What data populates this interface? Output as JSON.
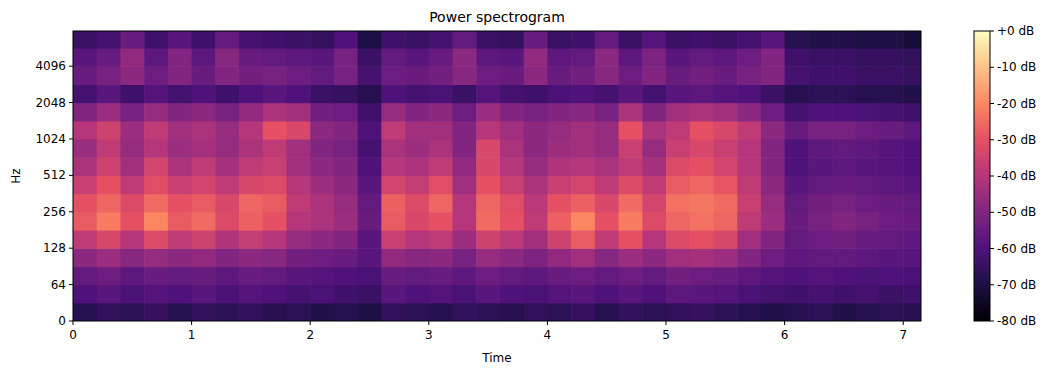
{
  "chart_data": {
    "type": "heatmap",
    "title": "Power spectrogram",
    "x_label": "Time",
    "y_label": "Hz",
    "xlim": [
      0,
      7.15
    ],
    "ylim": [
      0,
      8000
    ],
    "xticks": [
      0,
      1,
      2,
      3,
      4,
      5,
      6,
      7
    ],
    "yticks": [
      0,
      64,
      128,
      256,
      512,
      1024,
      2048,
      4096
    ],
    "log": "y",
    "x_edges": [
      0,
      0.2,
      0.4,
      0.6,
      0.8,
      1.0,
      1.2,
      1.4,
      1.6,
      1.8,
      2.0,
      2.2,
      2.4,
      2.6,
      2.8,
      3.0,
      3.2,
      3.4,
      3.6,
      3.8,
      4.0,
      4.2,
      4.4,
      4.6,
      4.8,
      5.0,
      5.2,
      5.4,
      5.6,
      5.8,
      6.0,
      6.2,
      6.4,
      6.6,
      6.8,
      7.0,
      7.15
    ],
    "y_edges": [
      0,
      32,
      64,
      90,
      128,
      181,
      256,
      362,
      512,
      724,
      1024,
      1448,
      2048,
      2896,
      4096,
      5793,
      8000
    ],
    "cells": [
      [
        -68,
        -66,
        -67,
        -65,
        -68,
        -66,
        -67,
        -66,
        -68,
        -67,
        -69,
        -68,
        -70,
        -66,
        -67,
        -68,
        -66,
        -67,
        -68,
        -66,
        -67,
        -65,
        -68,
        -66,
        -67,
        -66,
        -65,
        -67,
        -68,
        -69,
        -68,
        -67,
        -69,
        -68,
        -67,
        -68
      ],
      [
        -60,
        -58,
        -61,
        -59,
        -60,
        -58,
        -61,
        -59,
        -60,
        -62,
        -61,
        -63,
        -64,
        -58,
        -60,
        -59,
        -61,
        -58,
        -60,
        -61,
        -59,
        -58,
        -60,
        -58,
        -60,
        -57,
        -58,
        -59,
        -61,
        -62,
        -63,
        -62,
        -63,
        -62,
        -64,
        -63
      ],
      [
        -56,
        -54,
        -57,
        -55,
        -56,
        -55,
        -57,
        -55,
        -56,
        -58,
        -59,
        -60,
        -61,
        -55,
        -56,
        -55,
        -57,
        -54,
        -56,
        -57,
        -55,
        -54,
        -56,
        -54,
        -56,
        -53,
        -54,
        -55,
        -57,
        -59,
        -60,
        -59,
        -60,
        -61,
        -60,
        -61
      ],
      [
        -48,
        -45,
        -49,
        -46,
        -48,
        -47,
        -50,
        -48,
        -49,
        -53,
        -54,
        -55,
        -58,
        -47,
        -49,
        -48,
        -52,
        -46,
        -48,
        -51,
        -47,
        -44,
        -49,
        -45,
        -48,
        -44,
        -43,
        -45,
        -50,
        -54,
        -57,
        -56,
        -56,
        -57,
        -58,
        -58
      ],
      [
        -38,
        -33,
        -40,
        -32,
        -38,
        -35,
        -41,
        -37,
        -40,
        -46,
        -48,
        -50,
        -58,
        -36,
        -40,
        -38,
        -45,
        -35,
        -39,
        -44,
        -35,
        -28,
        -38,
        -30,
        -40,
        -32,
        -30,
        -33,
        -44,
        -50,
        -56,
        -54,
        -53,
        -55,
        -56,
        -57
      ],
      [
        -28,
        -22,
        -30,
        -20,
        -28,
        -25,
        -32,
        -27,
        -30,
        -40,
        -42,
        -45,
        -55,
        -28,
        -33,
        -30,
        -40,
        -25,
        -30,
        -38,
        -27,
        -20,
        -30,
        -22,
        -32,
        -26,
        -24,
        -26,
        -38,
        -45,
        -55,
        -52,
        -50,
        -52,
        -54,
        -55
      ],
      [
        -30,
        -26,
        -32,
        -25,
        -30,
        -28,
        -33,
        -26,
        -28,
        -38,
        -42,
        -46,
        -56,
        -27,
        -32,
        -26,
        -40,
        -26,
        -31,
        -39,
        -30,
        -27,
        -33,
        -25,
        -34,
        -24,
        -23,
        -25,
        -36,
        -46,
        -56,
        -53,
        -52,
        -54,
        -55,
        -56
      ],
      [
        -36,
        -30,
        -38,
        -31,
        -36,
        -34,
        -38,
        -33,
        -32,
        -40,
        -45,
        -48,
        -58,
        -34,
        -37,
        -31,
        -44,
        -30,
        -36,
        -42,
        -36,
        -34,
        -38,
        -32,
        -38,
        -28,
        -26,
        -29,
        -38,
        -48,
        -58,
        -56,
        -55,
        -56,
        -57,
        -58
      ],
      [
        -42,
        -35,
        -44,
        -34,
        -42,
        -38,
        -43,
        -38,
        -36,
        -44,
        -48,
        -50,
        -60,
        -40,
        -42,
        -38,
        -47,
        -33,
        -40,
        -46,
        -41,
        -40,
        -42,
        -38,
        -43,
        -32,
        -30,
        -34,
        -40,
        -50,
        -60,
        -58,
        -57,
        -58,
        -59,
        -60
      ],
      [
        -45,
        -38,
        -46,
        -40,
        -45,
        -43,
        -46,
        -42,
        -38,
        -44,
        -50,
        -52,
        -62,
        -42,
        -45,
        -42,
        -50,
        -33,
        -42,
        -48,
        -45,
        -44,
        -46,
        -36,
        -46,
        -36,
        -33,
        -36,
        -40,
        -50,
        -60,
        -57,
        -56,
        -57,
        -59,
        -60
      ],
      [
        -40,
        -35,
        -45,
        -38,
        -44,
        -42,
        -46,
        -40,
        -30,
        -33,
        -48,
        -50,
        -60,
        -38,
        -44,
        -44,
        -50,
        -40,
        -44,
        -48,
        -46,
        -44,
        -46,
        -30,
        -42,
        -38,
        -30,
        -33,
        -38,
        -48,
        -55,
        -52,
        -52,
        -54,
        -55,
        -57
      ],
      [
        -50,
        -45,
        -52,
        -46,
        -50,
        -48,
        -52,
        -47,
        -42,
        -44,
        -53,
        -54,
        -63,
        -46,
        -50,
        -48,
        -54,
        -45,
        -50,
        -52,
        -50,
        -49,
        -52,
        -42,
        -50,
        -44,
        -42,
        -44,
        -48,
        -54,
        -62,
        -60,
        -60,
        -61,
        -62,
        -63
      ],
      [
        -62,
        -58,
        -63,
        -59,
        -62,
        -60,
        -63,
        -60,
        -58,
        -60,
        -64,
        -65,
        -68,
        -60,
        -62,
        -61,
        -64,
        -59,
        -62,
        -63,
        -61,
        -60,
        -62,
        -58,
        -62,
        -58,
        -57,
        -59,
        -60,
        -64,
        -68,
        -67,
        -67,
        -68,
        -68,
        -69
      ],
      [
        -55,
        -52,
        -48,
        -54,
        -50,
        -55,
        -50,
        -53,
        -52,
        -54,
        -56,
        -52,
        -62,
        -54,
        -55,
        -53,
        -49,
        -54,
        -55,
        -48,
        -55,
        -53,
        -49,
        -54,
        -50,
        -55,
        -53,
        -55,
        -52,
        -50,
        -62,
        -63,
        -63,
        -64,
        -64,
        -65
      ],
      [
        -58,
        -55,
        -47,
        -57,
        -50,
        -57,
        -49,
        -55,
        -56,
        -57,
        -58,
        -52,
        -64,
        -56,
        -58,
        -55,
        -48,
        -57,
        -58,
        -47,
        -57,
        -56,
        -48,
        -57,
        -51,
        -58,
        -56,
        -57,
        -54,
        -50,
        -63,
        -64,
        -64,
        -65,
        -65,
        -66
      ],
      [
        -64,
        -62,
        -55,
        -63,
        -58,
        -63,
        -56,
        -62,
        -63,
        -64,
        -65,
        -60,
        -70,
        -63,
        -64,
        -62,
        -56,
        -64,
        -65,
        -55,
        -64,
        -63,
        -56,
        -64,
        -59,
        -64,
        -63,
        -64,
        -62,
        -58,
        -68,
        -69,
        -69,
        -70,
        -70,
        -72
      ]
    ],
    "colorbar_range": [
      -80,
      0
    ],
    "colorbar_ticks": [
      {
        "value": 0,
        "label": "+0 dB"
      },
      {
        "value": -10,
        "label": "-10 dB"
      },
      {
        "value": -20,
        "label": "-20 dB"
      },
      {
        "value": -30,
        "label": "-30 dB"
      },
      {
        "value": -40,
        "label": "-40 dB"
      },
      {
        "value": -50,
        "label": "-50 dB"
      },
      {
        "value": -60,
        "label": "-60 dB"
      },
      {
        "value": -70,
        "label": "-70 dB"
      },
      {
        "value": -80,
        "label": "-80 dB"
      }
    ]
  }
}
